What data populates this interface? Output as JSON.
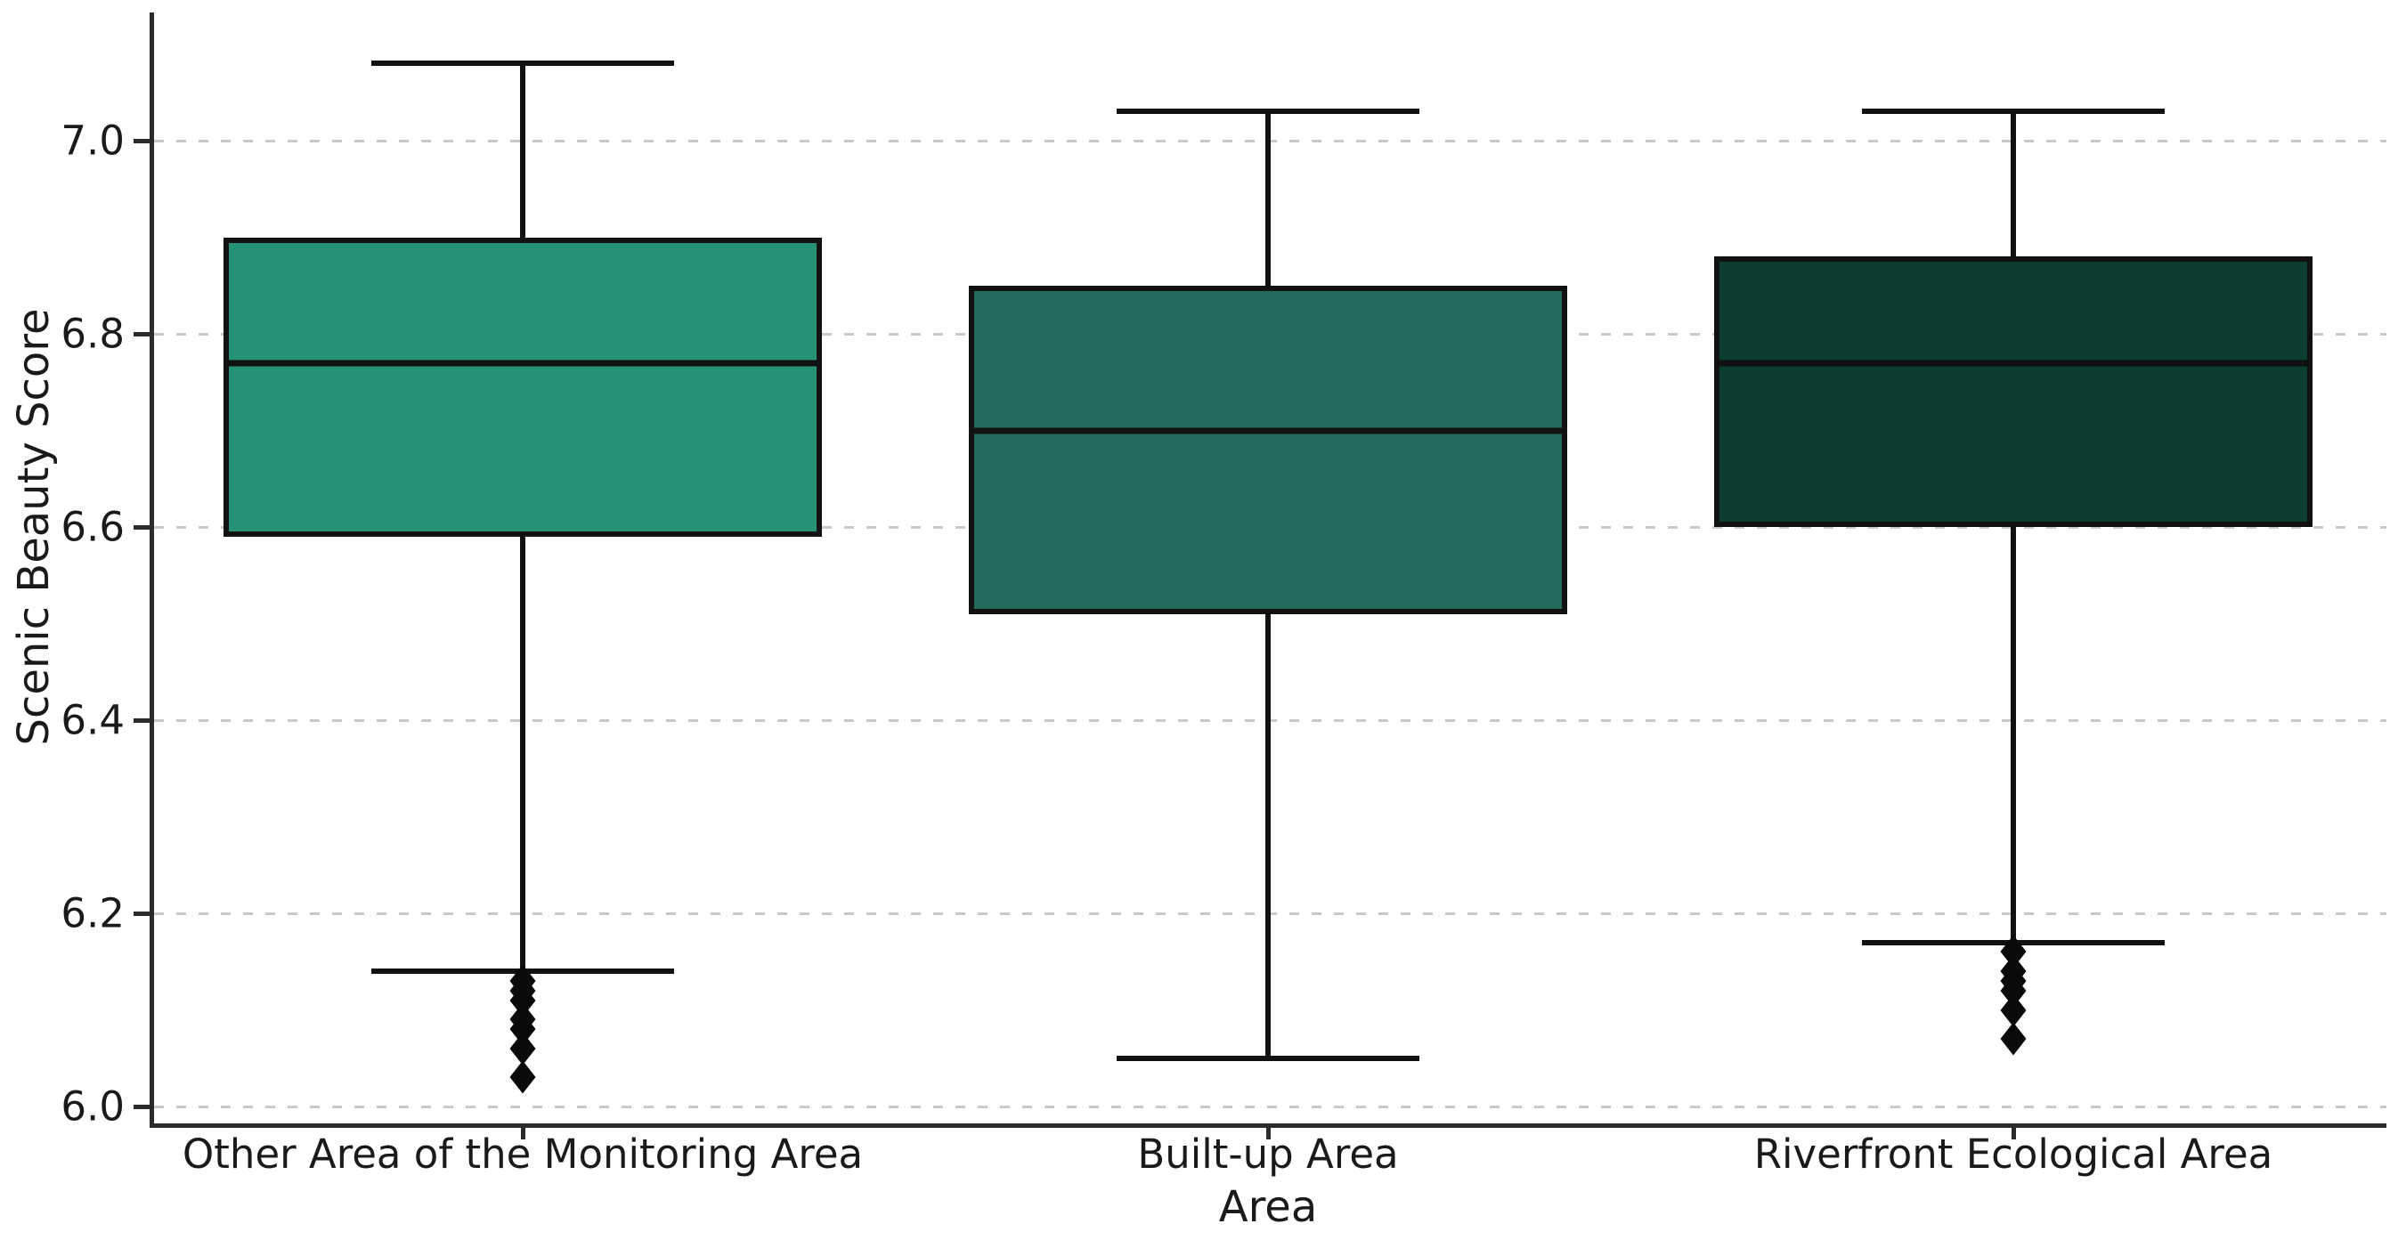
{
  "chart_data": {
    "type": "box",
    "title": "",
    "xlabel": "Area",
    "ylabel": "Scenic Beauty Score",
    "ylim": [
      5.98,
      7.13
    ],
    "yticks": [
      6.0,
      6.2,
      6.4,
      6.6,
      6.8,
      7.0
    ],
    "ytick_labels": [
      "6.0",
      "6.2",
      "6.4",
      "6.6",
      "6.8",
      "7.0"
    ],
    "grid": "horizontal dashed gridlines at each y tick",
    "legend": "none",
    "spines": "left and bottom only",
    "outlier_marker": "filled black diamond",
    "categories": [
      "Other Area of the Monitoring Area",
      "Built-up Area",
      "Riverfront Ecological Area"
    ],
    "boxes": [
      {
        "category": "Other Area of the Monitoring Area",
        "fill_color": "#259175",
        "whisker_high": 7.08,
        "q3": 6.9,
        "median": 6.77,
        "q1": 6.59,
        "whisker_low": 6.14,
        "outliers": [
          6.13,
          6.12,
          6.11,
          6.09,
          6.08,
          6.06,
          6.03
        ]
      },
      {
        "category": "Built-up Area",
        "fill_color": "#226b5e",
        "whisker_high": 7.03,
        "q3": 6.85,
        "median": 6.7,
        "q1": 6.51,
        "whisker_low": 6.05,
        "outliers": []
      },
      {
        "category": "Riverfront Ecological Area",
        "fill_color": "#0b3d30",
        "whisker_high": 7.03,
        "q3": 6.88,
        "median": 6.77,
        "q1": 6.6,
        "whisker_low": 6.17,
        "outliers": [
          6.16,
          6.14,
          6.13,
          6.12,
          6.1,
          6.07
        ]
      }
    ],
    "line_color": "#111111",
    "gridline_color": "#c9c9c9",
    "text_color": "#1a1a1a"
  }
}
